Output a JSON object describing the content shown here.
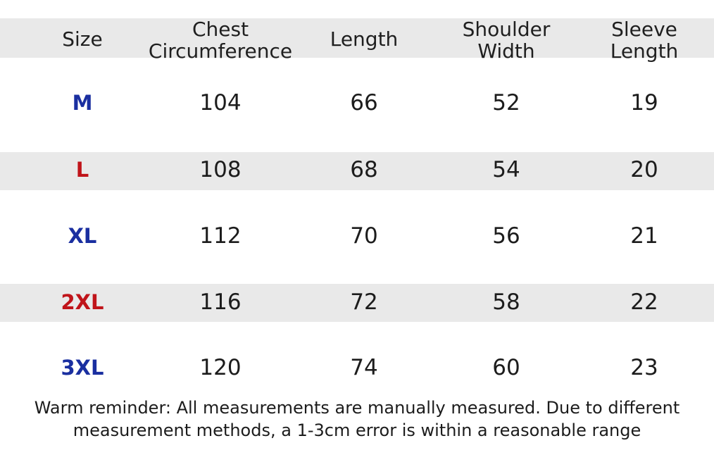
{
  "table": {
    "headers": [
      [
        "Size"
      ],
      [
        "Chest",
        "Circumference"
      ],
      [
        "Length"
      ],
      [
        "Shoulder",
        "Width"
      ],
      [
        "Sleeve",
        "Length"
      ]
    ],
    "rows": [
      {
        "size": "M",
        "chest": "104",
        "length": "66",
        "shoulder": "52",
        "sleeve": "19",
        "color": "#1a2fa0"
      },
      {
        "size": "L",
        "chest": "108",
        "length": "68",
        "shoulder": "54",
        "sleeve": "20",
        "color": "#c0141a"
      },
      {
        "size": "XL",
        "chest": "112",
        "length": "70",
        "shoulder": "56",
        "sleeve": "21",
        "color": "#1a2fa0"
      },
      {
        "size": "2XL",
        "chest": "116",
        "length": "72",
        "shoulder": "58",
        "sleeve": "22",
        "color": "#c0141a"
      },
      {
        "size": "3XL",
        "chest": "120",
        "length": "74",
        "shoulder": "60",
        "sleeve": "23",
        "color": "#1a2fa0"
      }
    ]
  },
  "note": {
    "line1": "Warm reminder: All measurements are manually measured. Due to different",
    "line2": "measurement methods, a 1-3cm error is within a reasonable range"
  },
  "colors": {
    "band": "#e9e9e9",
    "size_blue": "#1a2fa0",
    "size_red": "#c0141a"
  }
}
